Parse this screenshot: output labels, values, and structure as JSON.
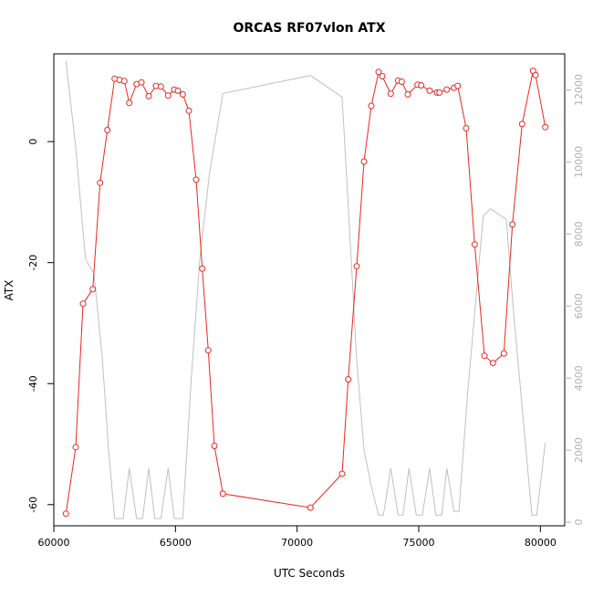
{
  "chart_data": {
    "type": "line",
    "title": "ORCAS RF07vlon ATX",
    "xlabel": "UTC Seconds",
    "ylabel": "ATX",
    "xlim": [
      60000,
      81000
    ],
    "ylim": [
      -63.5,
      14.5
    ],
    "y2lim": [
      -100,
      13000
    ],
    "x_ticks": [
      60000,
      65000,
      70000,
      75000,
      80000
    ],
    "y_ticks": [
      -60,
      -40,
      -20,
      0
    ],
    "y2_ticks": [
      0,
      2000,
      4000,
      6000,
      8000,
      10000,
      12000
    ],
    "grid": false,
    "series": [
      {
        "role": "primary",
        "color": "#e8281e",
        "marker": "open-circle",
        "x": [
          60500,
          60900,
          61200,
          61600,
          61900,
          62200,
          62500,
          62700,
          62900,
          63100,
          63400,
          63600,
          63900,
          64200,
          64400,
          64700,
          64950,
          65100,
          65300,
          65550,
          65850,
          66100,
          66350,
          66600,
          66950,
          70550,
          71850,
          72100,
          72450,
          72750,
          73050,
          73350,
          73500,
          73850,
          74150,
          74300,
          74550,
          74950,
          75100,
          75450,
          75750,
          75850,
          76150,
          76450,
          76600,
          76950,
          77300,
          77700,
          78050,
          78500,
          78850,
          79250,
          79700,
          79800,
          80200
        ],
        "y": [
          -61.5,
          -50.5,
          -26.8,
          -24.4,
          -6.8,
          1.9,
          10.4,
          10.2,
          10.0,
          6.4,
          9.5,
          9.8,
          7.5,
          9.2,
          9.1,
          7.6,
          8.6,
          8.4,
          7.8,
          5.1,
          -6.3,
          -21.0,
          -34.5,
          -50.3,
          -58.2,
          -60.5,
          -54.9,
          -39.3,
          -20.6,
          -3.3,
          5.9,
          11.5,
          10.8,
          7.9,
          10.1,
          9.9,
          7.8,
          9.4,
          9.3,
          8.4,
          8.1,
          8.1,
          8.6,
          8.9,
          9.2,
          2.2,
          -17.0,
          -35.4,
          -36.6,
          -35.0,
          -13.7,
          2.9,
          11.7,
          11.0,
          2.4
        ]
      },
      {
        "role": "secondary",
        "color": "#c0c0c0",
        "marker": "none",
        "x": [
          60500,
          60900,
          61300,
          61650,
          62000,
          62250,
          62500,
          62850,
          63100,
          63400,
          63650,
          63900,
          64150,
          64400,
          64700,
          64950,
          65300,
          65650,
          66000,
          66400,
          66950,
          70550,
          71850,
          72100,
          72450,
          72750,
          73050,
          73350,
          73550,
          73850,
          74150,
          74350,
          74600,
          74900,
          75150,
          75450,
          75700,
          75950,
          76150,
          76450,
          76650,
          77000,
          77300,
          77650,
          77950,
          78600,
          78900,
          79250,
          79650,
          79850,
          80200
        ],
        "y": [
          12800,
          10400,
          7300,
          6900,
          4500,
          2000,
          100,
          100,
          1500,
          100,
          100,
          1500,
          100,
          100,
          1500,
          100,
          100,
          4000,
          7300,
          9700,
          11900,
          12400,
          11800,
          8800,
          4500,
          2000,
          1000,
          200,
          200,
          1500,
          200,
          200,
          1500,
          200,
          200,
          1500,
          200,
          200,
          1500,
          300,
          300,
          3500,
          5800,
          8500,
          8700,
          8400,
          5800,
          3200,
          200,
          200,
          2200
        ]
      }
    ]
  }
}
